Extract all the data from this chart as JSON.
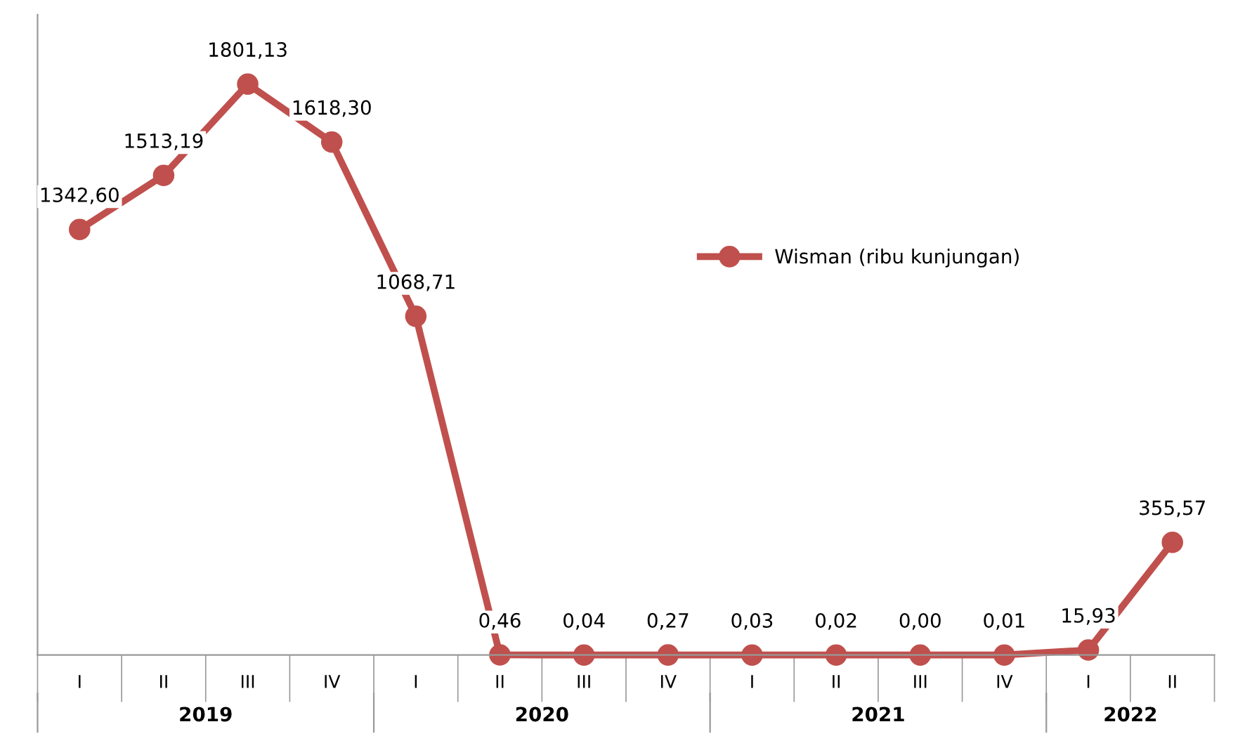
{
  "chart_data": {
    "type": "line",
    "categories": [
      "I",
      "II",
      "III",
      "IV",
      "I",
      "II",
      "III",
      "IV",
      "I",
      "II",
      "III",
      "IV",
      "I",
      "II"
    ],
    "series": [
      {
        "name": "Wisman (ribu kunjungan)",
        "color": "#c0504d",
        "values": [
          1342.6,
          1513.19,
          1801.13,
          1618.3,
          1068.71,
          0.46,
          0.04,
          0.27,
          0.03,
          0.02,
          0.0,
          0.01,
          15.93,
          355.57
        ],
        "value_labels": [
          "1342,60",
          "1513,19",
          "1801,13",
          "1618,30",
          "1068,71",
          "0,46",
          "0,04",
          "0,27",
          "0,03",
          "0,02",
          "0,00",
          "0,01",
          "15,93",
          "355,57"
        ]
      }
    ],
    "annotations": [
      "2019",
      "2020",
      "2021",
      "2022"
    ],
    "ylim": [
      0,
      2020
    ],
    "tick_labels": "x",
    "marker": "circle",
    "line_style": "solid",
    "legend": "right",
    "grid": false
  }
}
